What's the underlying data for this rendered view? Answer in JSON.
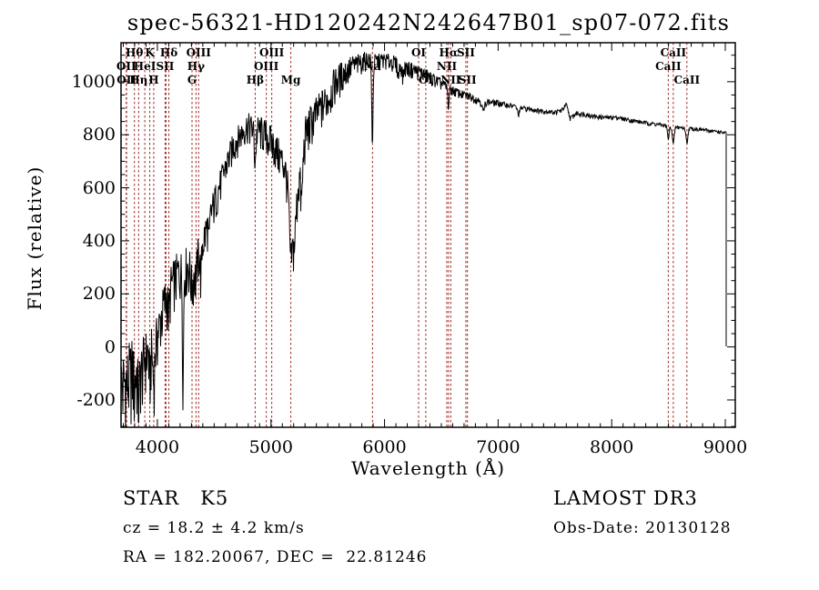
{
  "title": "spec-56321-HD120242N242647B01_sp07-072.fits",
  "annotations": {
    "classification": "STAR   K5",
    "cz": "cz = 18.2 ± 4.2 km/s",
    "ra_dec": "RA = 182.20067, DEC =  22.81246",
    "survey": "LAMOST DR3",
    "obs_date": "Obs-Date: 20130128"
  },
  "colors": {
    "spectrum_line": "#000000",
    "line_marker": "#9e2820",
    "frame": "#000000",
    "text": "#000000",
    "background": "#ffffff"
  },
  "chart_data": {
    "type": "line",
    "title": "spec-56321-HD120242N242647B01_sp07-072.fits",
    "xlabel": "Wavelength (Å)",
    "ylabel": "Flux (relative)",
    "xlim": [
      3680,
      9088
    ],
    "ylim": [
      -303,
      1147
    ],
    "xticks": [
      4000,
      5000,
      6000,
      7000,
      8000,
      9000
    ],
    "yticks": [
      -200,
      0,
      200,
      400,
      600,
      800,
      1000
    ],
    "xtick_minor_step": 100,
    "ytick_minor_step": 50,
    "grid": false,
    "legend": "none",
    "spectral_lines": [
      {
        "wavelength": 3726,
        "label": "OII",
        "row": 2
      },
      {
        "wavelength": 3729,
        "label": "OII",
        "row": 3
      },
      {
        "wavelength": 3798,
        "label": "Hθ",
        "row": 1
      },
      {
        "wavelength": 3835,
        "label": "Hη",
        "row": 3
      },
      {
        "wavelength": 3889,
        "label": "HeI",
        "row": 2
      },
      {
        "wavelength": 3933,
        "label": "K",
        "row": 1
      },
      {
        "wavelength": 3968,
        "label": "H",
        "row": 3
      },
      {
        "wavelength": 4068,
        "label": "SII",
        "row": 2
      },
      {
        "wavelength": 4076,
        "label": "",
        "row": 2
      },
      {
        "wavelength": 4101,
        "label": "Hδ",
        "row": 1
      },
      {
        "wavelength": 4305,
        "label": "G",
        "row": 3
      },
      {
        "wavelength": 4340,
        "label": "Hγ",
        "row": 2
      },
      {
        "wavelength": 4363,
        "label": "OIII",
        "row": 1
      },
      {
        "wavelength": 4861,
        "label": "Hβ",
        "row": 3
      },
      {
        "wavelength": 4959,
        "label": "OIII",
        "row": 2
      },
      {
        "wavelength": 5007,
        "label": "OIII",
        "row": 1
      },
      {
        "wavelength": 5175,
        "label": "Mg",
        "row": 3
      },
      {
        "wavelength": 5894,
        "label": "Na",
        "row": 2
      },
      {
        "wavelength": 6300,
        "label": "OI",
        "row": 1
      },
      {
        "wavelength": 6363,
        "label": "OI",
        "row": 3
      },
      {
        "wavelength": 6548,
        "label": "NII",
        "row": 2
      },
      {
        "wavelength": 6563,
        "label": "Hα",
        "row": 1
      },
      {
        "wavelength": 6583,
        "label": "NII",
        "row": 3
      },
      {
        "wavelength": 6716,
        "label": "SII",
        "row": 1
      },
      {
        "wavelength": 6730,
        "label": "SII",
        "row": 3
      },
      {
        "wavelength": 8498,
        "label": "CaII",
        "row": 2
      },
      {
        "wavelength": 8542,
        "label": "CaII",
        "row": 1
      },
      {
        "wavelength": 8662,
        "label": "CaII",
        "row": 3
      }
    ],
    "spectrum": {
      "envelope": [
        [
          3690,
          -140
        ],
        [
          3740,
          -120
        ],
        [
          3790,
          -70
        ],
        [
          3840,
          -110
        ],
        [
          3890,
          -40
        ],
        [
          3930,
          10
        ],
        [
          3970,
          -20
        ],
        [
          4010,
          70
        ],
        [
          4060,
          170
        ],
        [
          4120,
          235
        ],
        [
          4180,
          285
        ],
        [
          4240,
          300
        ],
        [
          4290,
          320
        ],
        [
          4330,
          310
        ],
        [
          4370,
          365
        ],
        [
          4430,
          445
        ],
        [
          4490,
          535
        ],
        [
          4550,
          615
        ],
        [
          4610,
          695
        ],
        [
          4670,
          765
        ],
        [
          4730,
          805
        ],
        [
          4790,
          840
        ],
        [
          4850,
          825
        ],
        [
          4910,
          820
        ],
        [
          4970,
          800
        ],
        [
          5020,
          770
        ],
        [
          5070,
          730
        ],
        [
          5120,
          690
        ],
        [
          5155,
          590
        ],
        [
          5175,
          380
        ],
        [
          5205,
          380
        ],
        [
          5240,
          630
        ],
        [
          5270,
          660
        ],
        [
          5300,
          800
        ],
        [
          5340,
          845
        ],
        [
          5390,
          880
        ],
        [
          5450,
          915
        ],
        [
          5510,
          950
        ],
        [
          5560,
          1000
        ],
        [
          5620,
          1030
        ],
        [
          5700,
          1060
        ],
        [
          5780,
          1075
        ],
        [
          5850,
          1090
        ],
        [
          5920,
          1080
        ],
        [
          5990,
          1085
        ],
        [
          6060,
          1080
        ],
        [
          6130,
          1065
        ],
        [
          6200,
          1055
        ],
        [
          6280,
          1045
        ],
        [
          6360,
          1030
        ],
        [
          6440,
          1010
        ],
        [
          6520,
          990
        ],
        [
          6600,
          970
        ],
        [
          6680,
          955
        ],
        [
          6760,
          945
        ],
        [
          6840,
          930
        ],
        [
          6920,
          925
        ],
        [
          7000,
          920
        ],
        [
          7100,
          912
        ],
        [
          7200,
          903
        ],
        [
          7300,
          896
        ],
        [
          7400,
          890
        ],
        [
          7500,
          886
        ],
        [
          7560,
          893
        ],
        [
          7600,
          915
        ],
        [
          7635,
          862
        ],
        [
          7690,
          882
        ],
        [
          7770,
          878
        ],
        [
          7850,
          870
        ],
        [
          7950,
          866
        ],
        [
          8050,
          866
        ],
        [
          8150,
          857
        ],
        [
          8250,
          849
        ],
        [
          8350,
          843
        ],
        [
          8450,
          837
        ],
        [
          8550,
          830
        ],
        [
          8650,
          826
        ],
        [
          8750,
          822
        ],
        [
          8850,
          817
        ],
        [
          8950,
          811
        ],
        [
          9005,
          807
        ]
      ],
      "noise_amplitude": [
        [
          3690,
          160
        ],
        [
          3800,
          140
        ],
        [
          3900,
          110
        ],
        [
          4000,
          95
        ],
        [
          4150,
          90
        ],
        [
          4300,
          85
        ],
        [
          4450,
          70
        ],
        [
          4600,
          55
        ],
        [
          4750,
          50
        ],
        [
          4900,
          60
        ],
        [
          5050,
          65
        ],
        [
          5160,
          70
        ],
        [
          5250,
          85
        ],
        [
          5400,
          70
        ],
        [
          5550,
          65
        ],
        [
          5700,
          45
        ],
        [
          5850,
          30
        ],
        [
          6000,
          28
        ],
        [
          6150,
          28
        ],
        [
          6300,
          26
        ],
        [
          6450,
          22
        ],
        [
          6600,
          17
        ],
        [
          6750,
          14
        ],
        [
          6900,
          12
        ],
        [
          7100,
          9
        ],
        [
          7400,
          8
        ],
        [
          7700,
          8
        ],
        [
          8000,
          7
        ],
        [
          8400,
          7
        ],
        [
          8800,
          6
        ],
        [
          9005,
          6
        ]
      ],
      "absorption_features": [
        [
          3798,
          70,
          6
        ],
        [
          3835,
          90,
          6
        ],
        [
          3933,
          120,
          7
        ],
        [
          3968,
          120,
          7
        ],
        [
          4101,
          80,
          7
        ],
        [
          4226,
          420,
          5
        ],
        [
          4305,
          80,
          12
        ],
        [
          4340,
          60,
          7
        ],
        [
          4383,
          110,
          6
        ],
        [
          4455,
          90,
          5
        ],
        [
          4861,
          120,
          7
        ],
        [
          5168,
          80,
          10
        ],
        [
          5270,
          110,
          8
        ],
        [
          5893,
          300,
          6
        ],
        [
          6122,
          45,
          6
        ],
        [
          6162,
          40,
          6
        ],
        [
          6563,
          70,
          6
        ],
        [
          6870,
          40,
          10
        ],
        [
          7180,
          25,
          10
        ],
        [
          8498,
          50,
          7
        ],
        [
          8542,
          65,
          8
        ],
        [
          8662,
          55,
          8
        ]
      ],
      "end_drop": {
        "wavelength": 9008,
        "flux": 2
      }
    }
  }
}
